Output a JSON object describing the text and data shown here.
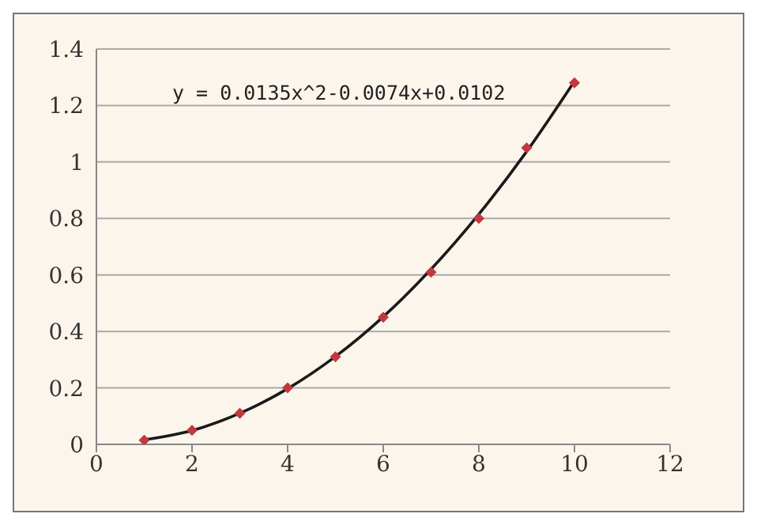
{
  "chart_data": {
    "type": "scatter",
    "marker": "diamond",
    "grid": "y",
    "annotations": [
      "y = 0.0135x^2-0.0074x+0.0102"
    ],
    "xlim": [
      0,
      12
    ],
    "xticks": [
      0,
      2,
      4,
      6,
      8,
      10,
      12
    ],
    "ylim": [
      0,
      1.4
    ],
    "yticks": [
      0,
      0.2,
      0.4,
      0.6,
      0.8,
      1,
      1.2,
      1.4
    ],
    "series": [
      {
        "color": "#c0393f",
        "x": [
          1,
          2,
          3,
          4,
          5,
          6,
          7,
          8,
          9,
          10
        ],
        "values": [
          0.015,
          0.05,
          0.11,
          0.2,
          0.31,
          0.45,
          0.61,
          0.8,
          1.05,
          1.28
        ]
      },
      {
        "type": "line",
        "color": "#1a1a1a",
        "marker": "none",
        "x": [
          1,
          2,
          3,
          4,
          5,
          6,
          7,
          8,
          9,
          10
        ],
        "values": [
          0.016,
          0.049,
          0.11,
          0.197,
          0.311,
          0.452,
          0.62,
          0.815,
          1.037,
          1.286
        ]
      }
    ]
  }
}
